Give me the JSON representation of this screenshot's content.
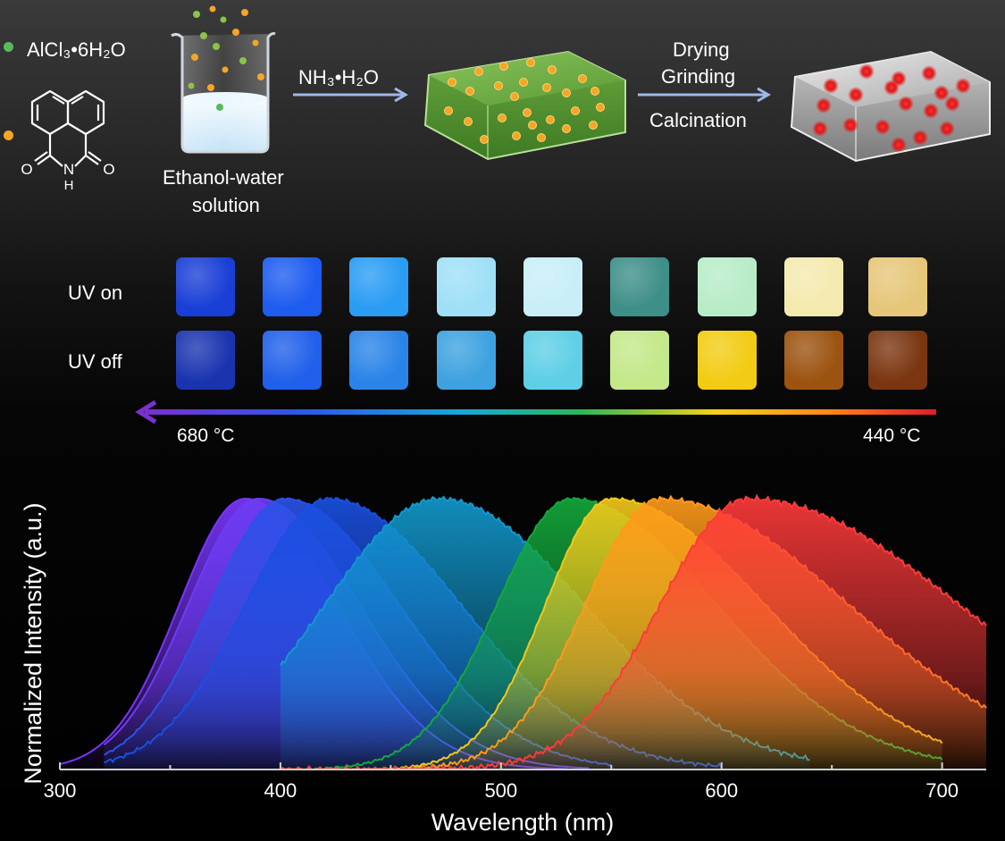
{
  "synthesis": {
    "reagent_salt": "AlCl₃•6H₂O",
    "reagent_salt_color": "#5cb85c",
    "ligand_color": "#f5a623",
    "ligand_atoms": {
      "oxygen_left": "O",
      "oxygen_right": "O",
      "nitrogen": "N",
      "hydrogen": "H"
    },
    "solvent_line1": "Ethanol-water",
    "solvent_line2": "solution",
    "step1_reagent": "NH₃•H₂O",
    "step2_line1": "Drying",
    "step2_line2": "Grinding",
    "step2_line3": "Calcination",
    "arrow_color": "#9fb8e8"
  },
  "swatches": {
    "row_uv_on_label": "UV on",
    "row_uv_off_label": "UV off",
    "uv_on_colors": [
      "#1a3fd6",
      "#1e5cf0",
      "#2a9cf4",
      "#9fe0f7",
      "#c9eef8",
      "#3e8f88",
      "#b8ecc8",
      "#f4eab0",
      "#e6c77a"
    ],
    "uv_off_colors": [
      "#1a34b0",
      "#2060ea",
      "#2a84e8",
      "#3ea2e0",
      "#5fcfe6",
      "#c4e88a",
      "#f2cc14",
      "#9c5310",
      "#7a3610"
    ],
    "temp_high_label": "680 °C",
    "temp_low_label": "440 °C"
  },
  "chart_data": {
    "type": "area",
    "title": "",
    "xlabel": "Wavelength (nm)",
    "ylabel": "Normalized Intensity (a.u.)",
    "xlim": [
      300,
      720
    ],
    "ylim": [
      0,
      1
    ],
    "xticks": [
      300,
      400,
      500,
      600,
      700
    ],
    "x_tick_labels": [
      "300",
      "400",
      "500",
      "600",
      "700"
    ],
    "grid": false,
    "series": [
      {
        "peak": 384,
        "sigma_left": 30,
        "sigma_right": 42,
        "x_start": 300,
        "x_end": 530,
        "color": "#7a35ff",
        "noise": 0
      },
      {
        "peak": 390,
        "sigma_left": 32,
        "sigma_right": 46,
        "x_start": 320,
        "x_end": 540,
        "color": "#6d3cf2",
        "noise": 0
      },
      {
        "peak": 402,
        "sigma_left": 34,
        "sigma_right": 52,
        "x_start": 320,
        "x_end": 550,
        "color": "#2a52e8",
        "noise": 0.004
      },
      {
        "peak": 422,
        "sigma_left": 38,
        "sigma_right": 60,
        "x_start": 320,
        "x_end": 600,
        "color": "#1a4fe0",
        "noise": 0.008
      },
      {
        "peak": 472,
        "sigma_left": 52,
        "sigma_right": 66,
        "x_start": 400,
        "x_end": 640,
        "color": "#1298cc",
        "noise": 0.01
      },
      {
        "peak": 532,
        "sigma_left": 34,
        "sigma_right": 66,
        "x_start": 400,
        "x_end": 700,
        "color": "#14a83c",
        "noise": 0.006
      },
      {
        "peak": 550,
        "sigma_left": 30,
        "sigma_right": 70,
        "x_start": 400,
        "x_end": 700,
        "color": "#f2c81a",
        "noise": 0.006
      },
      {
        "peak": 572,
        "sigma_left": 34,
        "sigma_right": 86,
        "x_start": 400,
        "x_end": 720,
        "color": "#ff9a1a",
        "noise": 0.01
      },
      {
        "peak": 612,
        "sigma_left": 40,
        "sigma_right": 96,
        "x_start": 400,
        "x_end": 720,
        "color": "#ff3a3a",
        "noise": 0.012
      }
    ]
  }
}
